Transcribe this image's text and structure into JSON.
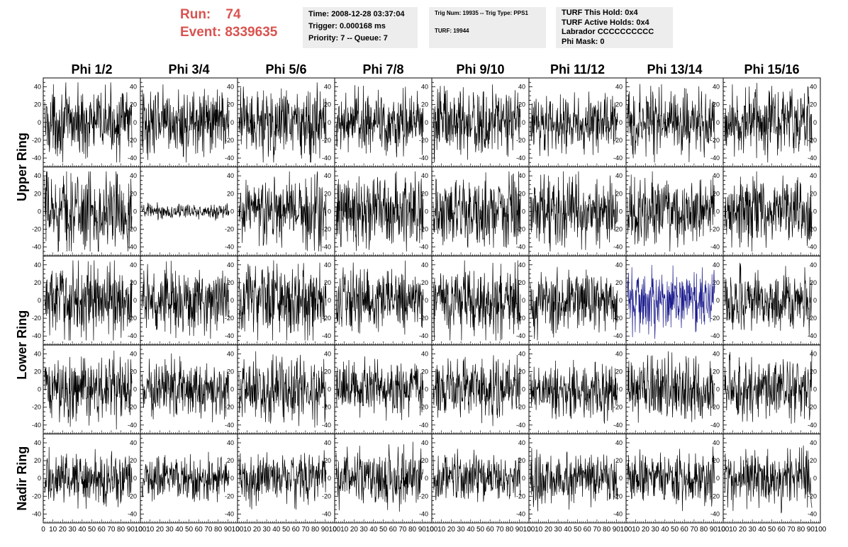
{
  "header": {
    "run_label": "Run:",
    "run_value": "74",
    "event_label": "Event:",
    "event_value": "8339635",
    "time": "Time: 2008-12-28 03:37:04",
    "trigger": "Trigger: 0.000168 ms",
    "priority": "Priority: 7 -- Queue: 7",
    "trig_num": "Trig Num: 19935 -- Trig Type: PPS1",
    "turf": "TURF: 19944",
    "turf_this_hold": "TURF This Hold: 0x4",
    "turf_active_holds": "TURF Active Holds: 0x4",
    "labrador": "Labrador CCCCCCCCCC",
    "phi_mask": "Phi Mask: 0"
  },
  "colors": {
    "header_text": "#d9534f",
    "trace": "#000000",
    "highlight_trace": "#1a1a8c",
    "info_bg": "#ededed"
  },
  "chart_data": {
    "type": "line",
    "columns": [
      "Phi 1/2",
      "Phi 3/4",
      "Phi 5/6",
      "Phi 7/8",
      "Phi 9/10",
      "Phi 11/12",
      "Phi 13/14",
      "Phi 15/16"
    ],
    "rows": [
      "Upper Ring",
      "Upper Ring",
      "Lower Ring",
      "Lower Ring",
      "Nadir Ring"
    ],
    "row_labels": [
      {
        "text": "Upper Ring",
        "rows": [
          0,
          1
        ]
      },
      {
        "text": "Lower Ring",
        "rows": [
          2,
          3
        ]
      },
      {
        "text": "Nadir Ring",
        "rows": [
          4,
          4
        ]
      }
    ],
    "x_range": [
      0,
      100
    ],
    "y_range": [
      -50,
      50
    ],
    "x_ticks": [
      "0",
      "10",
      "20",
      "30",
      "40",
      "50",
      "60",
      "70",
      "80",
      "90",
      "100"
    ],
    "y_ticks": [
      "40",
      "20",
      "0",
      "-20",
      "-40"
    ],
    "grid": false,
    "panels": [
      [
        {
          "amp": 18
        },
        {
          "amp": 18
        },
        {
          "amp": 20
        },
        {
          "amp": 18
        },
        {
          "amp": 19
        },
        {
          "amp": 15
        },
        {
          "amp": 18
        },
        {
          "amp": 18
        }
      ],
      [
        {
          "amp": 22
        },
        {
          "amp": 4
        },
        {
          "amp": 20
        },
        {
          "amp": 20
        },
        {
          "amp": 20
        },
        {
          "amp": 18
        },
        {
          "amp": 18
        },
        {
          "amp": 18
        }
      ],
      [
        {
          "amp": 20
        },
        {
          "amp": 18
        },
        {
          "amp": 20
        },
        {
          "amp": 17
        },
        {
          "amp": 20
        },
        {
          "amp": 17
        },
        {
          "amp": 17,
          "highlight": true
        },
        {
          "amp": 16
        }
      ],
      [
        {
          "amp": 18
        },
        {
          "amp": 16
        },
        {
          "amp": 17
        },
        {
          "amp": 15
        },
        {
          "amp": 17
        },
        {
          "amp": 15
        },
        {
          "amp": 17
        },
        {
          "amp": 17
        }
      ],
      [
        {
          "amp": 14
        },
        {
          "amp": 12
        },
        {
          "amp": 14
        },
        {
          "amp": 16
        },
        {
          "amp": 13
        },
        {
          "amp": 15
        },
        {
          "amp": 14
        },
        {
          "amp": 16
        }
      ]
    ]
  }
}
